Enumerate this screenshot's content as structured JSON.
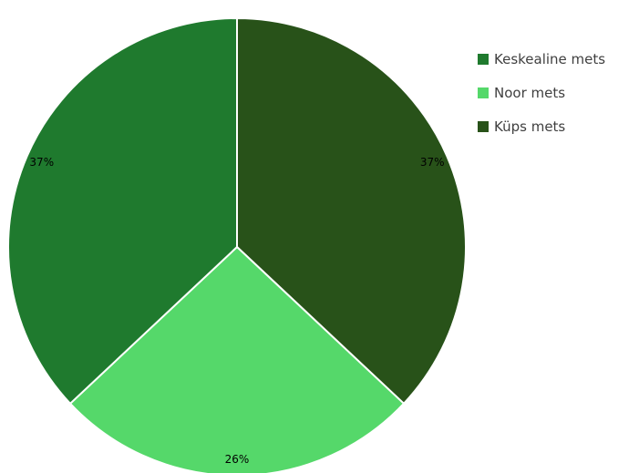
{
  "chart_data": {
    "type": "pie",
    "title": "",
    "slices": [
      {
        "name": "Keskealine mets",
        "value": 37,
        "label": "37%",
        "color": "#1f7a2e"
      },
      {
        "name": "Noor mets",
        "value": 26,
        "label": "26%",
        "color": "#55d86a"
      },
      {
        "name": "Küps mets",
        "value": 37,
        "label": "37%",
        "color": "#285219"
      }
    ],
    "legend": {
      "position": "right",
      "entries": [
        "Keskealine mets",
        "Noor mets",
        "Küps mets"
      ]
    },
    "start_angle_deg": 0,
    "direction": "clockwise",
    "slice_order_from_top": [
      "Küps mets",
      "Noor mets",
      "Keskealine mets"
    ]
  }
}
